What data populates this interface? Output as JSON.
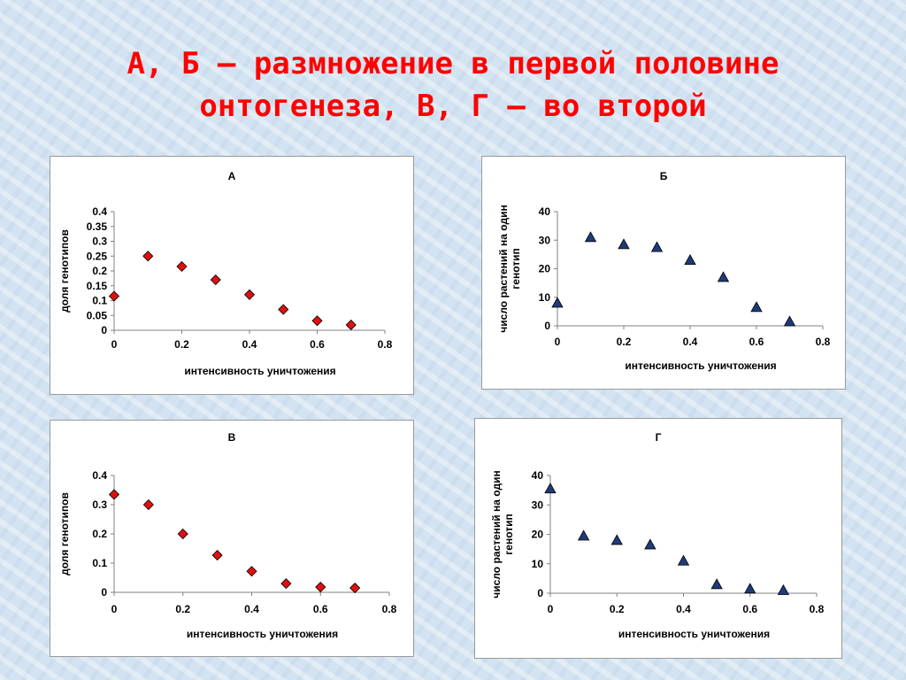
{
  "slide": {
    "title_line1": "А, Б – размножение в первой половине",
    "title_line2": "онтогенеза, В, Г – во второй"
  },
  "chart_data": [
    {
      "type": "scatter",
      "title": "А",
      "xlabel": "интенсивность уничтожения",
      "ylabel": "доля генотипов",
      "xlim": [
        0,
        0.8
      ],
      "ylim": [
        0,
        0.4
      ],
      "xticks": [
        "0",
        "0.2",
        "0.4",
        "0.6",
        "0.8"
      ],
      "yticks": [
        "0",
        "0.05",
        "0.1",
        "0.15",
        "0.2",
        "0.25",
        "0.3",
        "0.35",
        "0.4"
      ],
      "marker": "diamond",
      "color": "#e01010",
      "x": [
        0,
        0.1,
        0.2,
        0.3,
        0.4,
        0.5,
        0.6,
        0.7
      ],
      "y": [
        0.115,
        0.25,
        0.215,
        0.17,
        0.12,
        0.07,
        0.032,
        0.018
      ],
      "grid": false
    },
    {
      "type": "scatter",
      "title": "Б",
      "xlabel": "интенсивность уничтожения",
      "ylabel": "число растений на один генотип",
      "ylabel_lines": [
        "число растений на один",
        "генотип"
      ],
      "xlim": [
        0,
        0.8
      ],
      "ylim": [
        0,
        40
      ],
      "xticks": [
        "0",
        "0.2",
        "0.4",
        "0.6",
        "0.8"
      ],
      "yticks": [
        "0",
        "10",
        "20",
        "30",
        "40"
      ],
      "marker": "triangle",
      "color": "#1f3a7a",
      "x": [
        0,
        0.1,
        0.2,
        0.3,
        0.4,
        0.5,
        0.6,
        0.7
      ],
      "y": [
        8,
        31,
        28.5,
        27.5,
        23,
        17,
        6.5,
        1.5
      ],
      "grid": false
    },
    {
      "type": "scatter",
      "title": "В",
      "xlabel": "интенсивность уничтожения",
      "ylabel": "доля генотипов",
      "xlim": [
        0,
        0.8
      ],
      "ylim": [
        0,
        0.4
      ],
      "xticks": [
        "0",
        "0.2",
        "0.4",
        "0.6",
        "0.8"
      ],
      "yticks": [
        "0",
        "0.1",
        "0.2",
        "0.3",
        "0.4"
      ],
      "marker": "diamond",
      "color": "#e01010",
      "x": [
        0,
        0.1,
        0.2,
        0.3,
        0.4,
        0.5,
        0.6,
        0.7
      ],
      "y": [
        0.335,
        0.3,
        0.2,
        0.127,
        0.072,
        0.03,
        0.018,
        0.015
      ],
      "grid": false
    },
    {
      "type": "scatter",
      "title": "Г",
      "xlabel": "интенсивность уничтожения",
      "ylabel": "число растений на один генотип",
      "ylabel_lines": [
        "число растений на один",
        "генотип"
      ],
      "xlim": [
        0,
        0.8
      ],
      "ylim": [
        0,
        40
      ],
      "xticks": [
        "0",
        "0.2",
        "0.4",
        "0.6",
        "0.8"
      ],
      "yticks": [
        "0",
        "10",
        "20",
        "30",
        "40"
      ],
      "marker": "triangle",
      "color": "#1f3a7a",
      "x": [
        0,
        0.1,
        0.2,
        0.3,
        0.4,
        0.5,
        0.6,
        0.7
      ],
      "y": [
        35.5,
        19.5,
        18,
        16.5,
        11,
        3,
        1.5,
        1
      ],
      "grid": false
    }
  ]
}
